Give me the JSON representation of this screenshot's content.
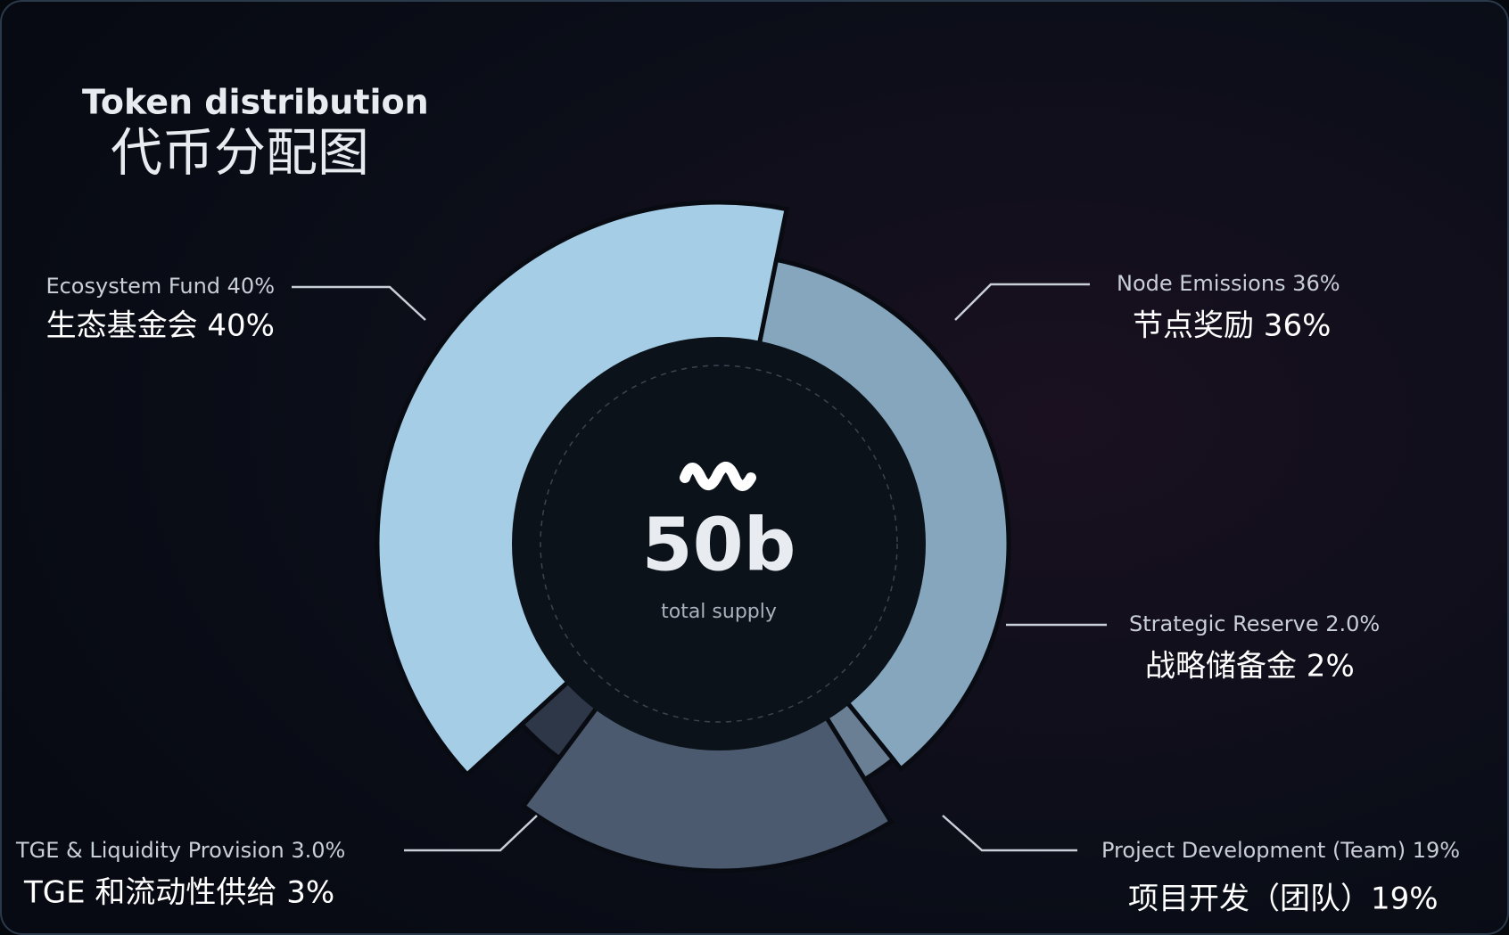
{
  "chart_data": {
    "type": "pie",
    "title": "Token distribution",
    "subtitle": "代币分配图",
    "categories": [
      "Ecosystem Fund 40%",
      "Node Emissions 36%",
      "Strategic Reserve 2.0%",
      "Project Development (Team) 19%",
      "TGE & Liquidity Provision 3.0%"
    ],
    "values": [
      40,
      36,
      2.0,
      19,
      3.0
    ],
    "value_labels": [
      "生态基金会 40%",
      "节点奖励 36%",
      "战略储备金 2%",
      "项目开发（团队）19%",
      "TGE 和流动性供给 3%"
    ],
    "colors": [
      "#a6cde6",
      "#86a6bd",
      "#6b7f94",
      "#4b5a6e",
      "#2d3748"
    ],
    "center_label": "50b",
    "center_sublabel": "total supply"
  }
}
